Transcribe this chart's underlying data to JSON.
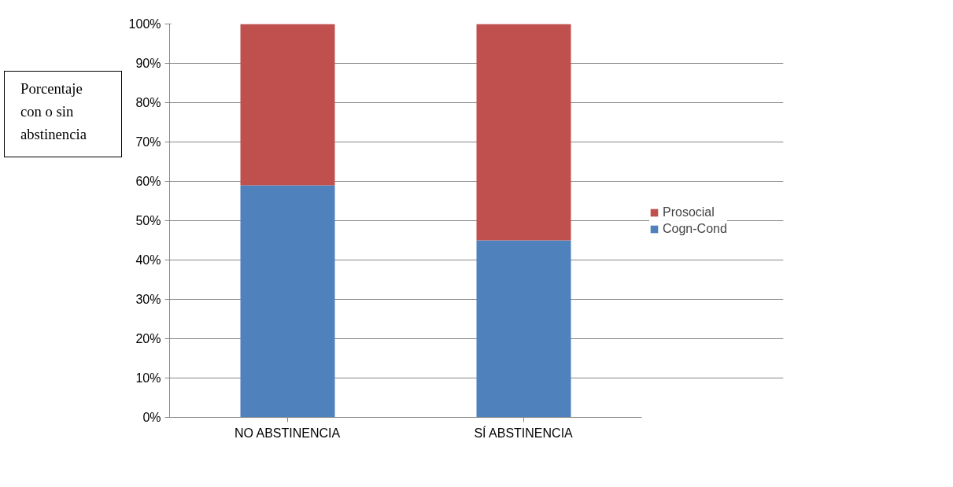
{
  "chart_data": {
    "type": "bar",
    "stacked": true,
    "ylabel": "Porcentaje con o sin abstinencia",
    "categories": [
      "NO ABSTINENCIA",
      "SÍ ABSTINENCIA"
    ],
    "series": [
      {
        "name": "Cogn-Cond",
        "color": "#4f81bd",
        "values": [
          59,
          45
        ]
      },
      {
        "name": "Prosocial",
        "color": "#c0504d",
        "values": [
          41,
          55
        ]
      }
    ],
    "ylim": [
      0,
      100
    ],
    "yticks": [
      {
        "value": 0,
        "label": "0%"
      },
      {
        "value": 10,
        "label": "10%"
      },
      {
        "value": 20,
        "label": "20%"
      },
      {
        "value": 30,
        "label": "30%"
      },
      {
        "value": 40,
        "label": "40%"
      },
      {
        "value": 50,
        "label": "50%"
      },
      {
        "value": 60,
        "label": "60%"
      },
      {
        "value": 70,
        "label": "70%"
      },
      {
        "value": 80,
        "label": "80%"
      },
      {
        "value": 90,
        "label": "90%"
      },
      {
        "value": 100,
        "label": "100%"
      }
    ],
    "grid": "y",
    "legend": "right"
  }
}
